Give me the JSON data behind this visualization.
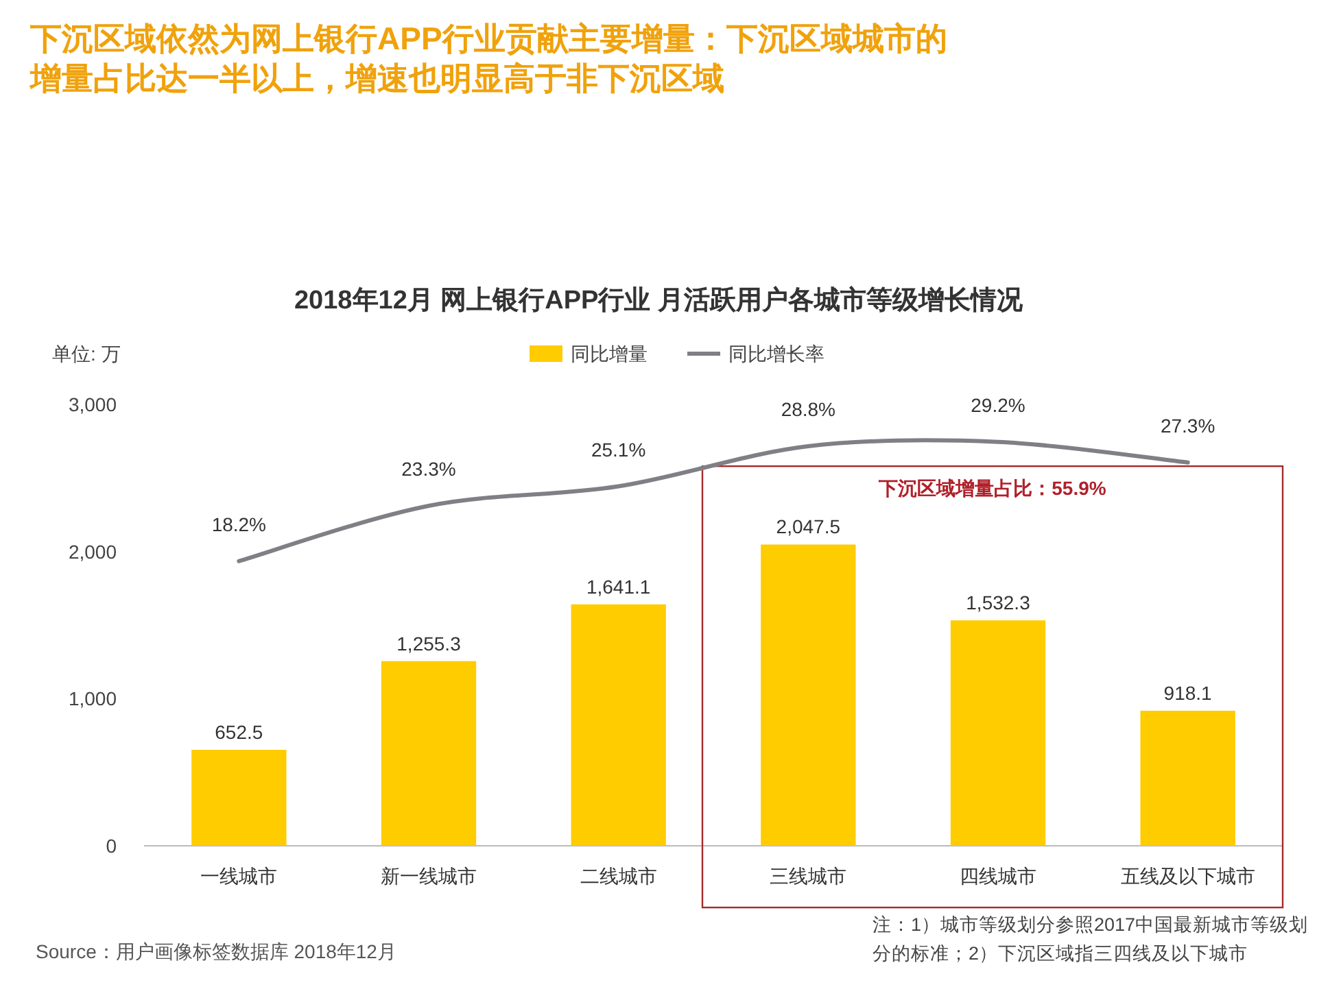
{
  "chart_data": {
    "type": "bar",
    "title": "下沉区域依然为网上银行APP行业贡献主要增量：下沉区域城市的增量占比达一半以上，增速也明显高于非下沉区域",
    "subtitle": "2018年12月 网上银行APP行业 月活跃用户各城市等级增长情况",
    "ylabel": "单位: 万",
    "categories": [
      "一线城市",
      "新一线城市",
      "二线城市",
      "三线城市",
      "四线城市",
      "五线及以下城市"
    ],
    "series": [
      {
        "name": "同比增量",
        "color": "#ffcc00",
        "values": [
          652.5,
          1255.3,
          1641.1,
          2047.5,
          1532.3,
          918.1
        ],
        "value_labels": [
          "652.5",
          "1,255.3",
          "1,641.1",
          "2,047.5",
          "1,532.3",
          "918.1"
        ]
      },
      {
        "name": "同比增长率",
        "type": "line",
        "axis": "y2",
        "color": "#7f7f86",
        "values": [
          18.2,
          23.3,
          25.1,
          28.8,
          29.2,
          27.3
        ],
        "value_labels": [
          "18.2%",
          "23.3%",
          "25.1%",
          "28.8%",
          "29.2%",
          "27.3%"
        ]
      }
    ],
    "ylim": [
      0,
      3000
    ],
    "yticks": [
      {
        "value": 0,
        "label": "0"
      },
      {
        "value": 1000,
        "label": "1,000"
      },
      {
        "value": 2000,
        "label": "2,000"
      },
      {
        "value": 3000,
        "label": "3,000"
      }
    ],
    "legend": "top",
    "grid": false,
    "marker": "none",
    "line_style": "solid",
    "annotations": [
      "下沉区域增量占比：55.9%",
      "注：1）城市等级划分参照2017中国最新城市等级划分的标准；2）下沉区域指三四线及以下城市",
      "Source：用户画像标签数据库 2018年12月"
    ]
  }
}
